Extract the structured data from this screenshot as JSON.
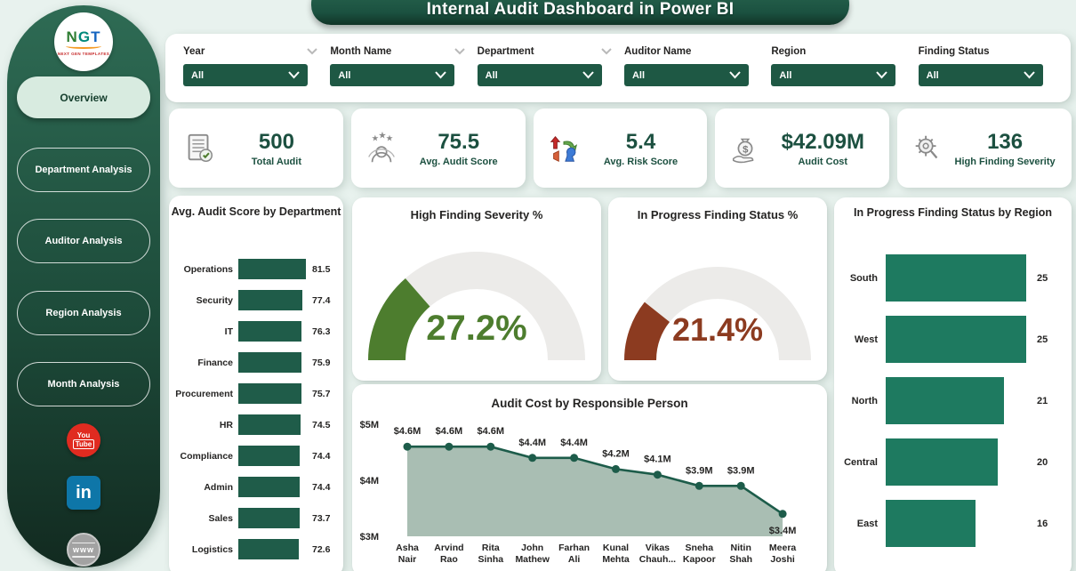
{
  "app": {
    "title": "Internal Audit Dashboard in Power BI"
  },
  "logo": {
    "text": "NGT",
    "subtext": "NEXT GEN TEMPLATES"
  },
  "sidebar": {
    "items": [
      {
        "label": "Overview",
        "active": true
      },
      {
        "label": "Department Analysis",
        "active": false
      },
      {
        "label": "Auditor Analysis",
        "active": false
      },
      {
        "label": "Region Analysis",
        "active": false
      },
      {
        "label": "Month Analysis",
        "active": false
      }
    ],
    "social": [
      {
        "name": "youtube-icon",
        "l1": "You",
        "l2": "Tube"
      },
      {
        "name": "linkedin-icon",
        "label": "in"
      },
      {
        "name": "website-globe-icon",
        "label": "www"
      }
    ]
  },
  "filters": [
    {
      "label": "Year",
      "value": "All"
    },
    {
      "label": "Month Name",
      "value": "All"
    },
    {
      "label": "Department",
      "value": "All"
    },
    {
      "label": "Auditor Name",
      "value": "All"
    },
    {
      "label": "Region",
      "value": "All"
    },
    {
      "label": "Finding Status",
      "value": "All"
    }
  ],
  "kpis": [
    {
      "icon": "audit-checklist-icon",
      "value": "500",
      "label": "Total Audit"
    },
    {
      "icon": "score-stars-person-icon",
      "value": "75.5",
      "label": "Avg. Audit Score"
    },
    {
      "icon": "risk-arrows-icon",
      "value": "5.4",
      "label": "Avg. Risk Score"
    },
    {
      "icon": "hand-money-icon",
      "value": "$42.09M",
      "label": "Audit Cost"
    },
    {
      "icon": "severity-gear-icon",
      "value": "136",
      "label": "High Finding Severity"
    }
  ],
  "chart_data": [
    {
      "id": "dept_scores",
      "type": "bar",
      "orientation": "horizontal",
      "title": "Avg. Audit Score by Department",
      "categories": [
        "Operations",
        "Security",
        "IT",
        "Finance",
        "Procurement",
        "HR",
        "Compliance",
        "Admin",
        "Sales",
        "Logistics"
      ],
      "values": [
        81.5,
        77.4,
        76.3,
        75.9,
        75.7,
        74.5,
        74.4,
        74.4,
        73.7,
        72.6
      ],
      "xlim": [
        0,
        81.5
      ],
      "bar_color": "#1f5c49"
    },
    {
      "id": "high_severity_gauge",
      "type": "gauge",
      "title": "High Finding Severity %",
      "value": 27.2,
      "display": "27.2%",
      "min": 0,
      "max": 100,
      "color": "#4d7d2e",
      "track_color": "#ecebe9"
    },
    {
      "id": "in_progress_gauge",
      "type": "gauge",
      "title": "In Progress Finding Status %",
      "value": 21.4,
      "display": "21.4%",
      "min": 0,
      "max": 100,
      "color": "#8c3b20",
      "track_color": "#ecebe9"
    },
    {
      "id": "audit_cost",
      "type": "area",
      "title": "Audit Cost by Responsible Person",
      "categories": [
        "Asha Nair",
        "Arvind Rao",
        "Rita Sinha",
        "John Mathew",
        "Farhan Ali",
        "Kunal Mehta",
        "Vikas Chauh...",
        "Sneha Kapoor",
        "Nitin Shah",
        "Meera Joshi"
      ],
      "values": [
        4.6,
        4.6,
        4.6,
        4.4,
        4.4,
        4.2,
        4.1,
        3.9,
        3.9,
        3.4
      ],
      "labels": [
        "$4.6M",
        "$4.6M",
        "$4.6M",
        "$4.4M",
        "$4.4M",
        "$4.2M",
        "$4.1M",
        "$3.9M",
        "$3.9M",
        "$3.4M"
      ],
      "yticks": [
        "$5M",
        "$4M",
        "$3M"
      ],
      "ylim": [
        3,
        5
      ],
      "line_color": "#1d5c4a",
      "fill_color": "#a2b8ad"
    },
    {
      "id": "region_status",
      "type": "bar",
      "orientation": "horizontal",
      "title": "In Progress Finding Status by Region",
      "categories": [
        "South",
        "West",
        "North",
        "Central",
        "East"
      ],
      "values": [
        25,
        25,
        21,
        20,
        16
      ],
      "xlim": [
        0,
        25
      ],
      "bar_color": "#1e7a60"
    }
  ]
}
